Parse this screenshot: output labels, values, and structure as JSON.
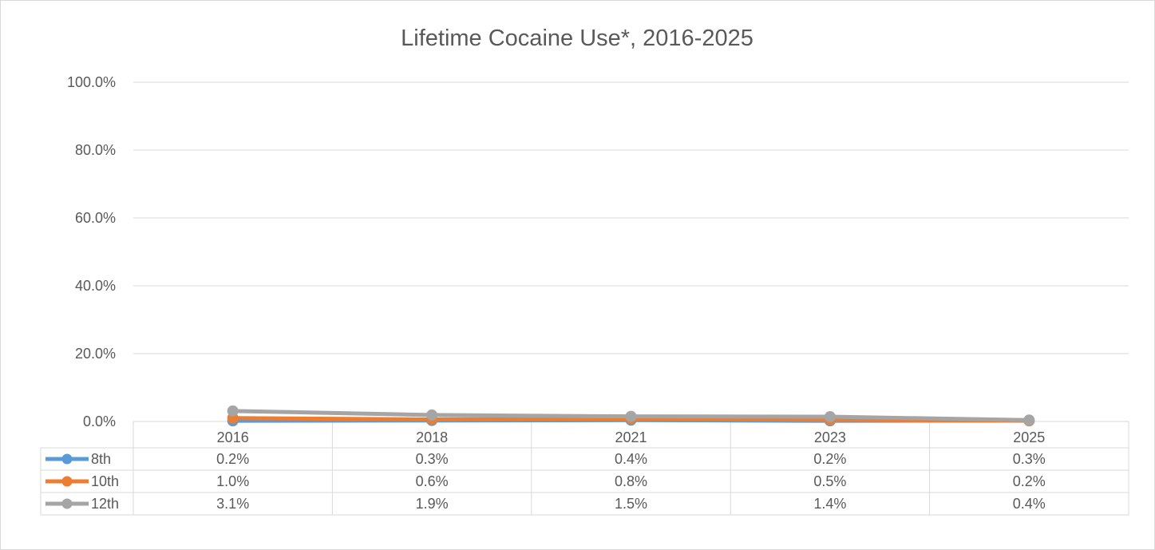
{
  "chart_data": {
    "type": "line",
    "title": "Lifetime Cocaine Use*, 2016-2025",
    "categories": [
      "2016",
      "2018",
      "2021",
      "2023",
      "2025"
    ],
    "series": [
      {
        "name": "8th",
        "values": [
          0.2,
          0.3,
          0.4,
          0.2,
          0.3
        ],
        "labels": [
          "0.2%",
          "0.3%",
          "0.4%",
          "0.2%",
          "0.3%"
        ],
        "color": "#5b9bd5"
      },
      {
        "name": "10th",
        "values": [
          1.0,
          0.6,
          0.8,
          0.5,
          0.2
        ],
        "labels": [
          "1.0%",
          "0.6%",
          "0.8%",
          "0.5%",
          "0.2%"
        ],
        "color": "#ed7d31"
      },
      {
        "name": "12th",
        "values": [
          3.1,
          1.9,
          1.5,
          1.4,
          0.4
        ],
        "labels": [
          "3.1%",
          "1.9%",
          "1.5%",
          "1.4%",
          "0.4%"
        ],
        "color": "#a5a5a5"
      }
    ],
    "yticks": [
      "0.0%",
      "20.0%",
      "40.0%",
      "60.0%",
      "80.0%",
      "100.0%"
    ],
    "ytick_values": [
      0,
      20,
      40,
      60,
      80,
      100
    ],
    "ylim": [
      0,
      100
    ],
    "grid": true,
    "legend": "data table below chart"
  },
  "colors": {
    "grid": "#d9d9d9",
    "text": "#595959"
  }
}
